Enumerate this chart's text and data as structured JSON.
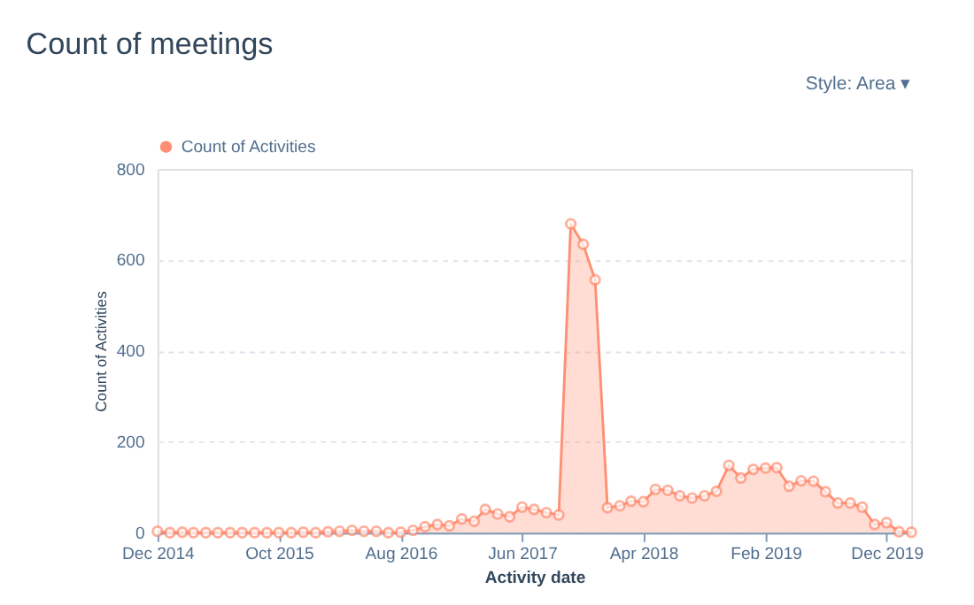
{
  "chart_data": {
    "type": "area",
    "title": "Count of meetings",
    "xlabel": "Activity date",
    "ylabel": "Count of Activities",
    "annotations": [
      "Style: Area ▾"
    ],
    "x": [
      "2014-12",
      "2015-01",
      "2015-02",
      "2015-03",
      "2015-04",
      "2015-05",
      "2015-06",
      "2015-07",
      "2015-08",
      "2015-09",
      "2015-10",
      "2015-11",
      "2015-12",
      "2016-01",
      "2016-02",
      "2016-03",
      "2016-04",
      "2016-05",
      "2016-06",
      "2016-07",
      "2016-08",
      "2016-09",
      "2016-10",
      "2016-11",
      "2016-12",
      "2017-01",
      "2017-02",
      "2017-03",
      "2017-04",
      "2017-05",
      "2017-06",
      "2017-07",
      "2017-08",
      "2017-09",
      "2017-10",
      "2017-11",
      "2017-12",
      "2018-01",
      "2018-02",
      "2018-03",
      "2018-04",
      "2018-05",
      "2018-06",
      "2018-07",
      "2018-08",
      "2018-09",
      "2018-10",
      "2018-11",
      "2018-12",
      "2019-01",
      "2019-02",
      "2019-03",
      "2019-04",
      "2019-05",
      "2019-06",
      "2019-07",
      "2019-08",
      "2019-09",
      "2019-10",
      "2019-11",
      "2019-12",
      "2020-01",
      "2020-02"
    ],
    "series": [
      {
        "name": "Count of Activities",
        "color": "#ff8f73",
        "values": [
          3,
          0,
          1,
          0,
          0,
          0,
          0,
          0,
          0,
          0,
          0,
          0,
          1,
          0,
          2,
          3,
          5,
          3,
          3,
          0,
          1,
          5,
          13,
          18,
          15,
          30,
          25,
          51,
          41,
          35,
          56,
          51,
          44,
          39,
          679,
          634,
          556,
          55,
          59,
          69,
          68,
          95,
          93,
          81,
          76,
          81,
          91,
          148,
          120,
          139,
          142,
          143,
          102,
          114,
          113,
          90,
          65,
          65,
          56,
          18,
          22,
          2,
          1
        ]
      }
    ],
    "xlim": [
      "2014-12",
      "2020-02"
    ],
    "xticks": [
      {
        "value": "2014-12",
        "label": "Dec 2014"
      },
      {
        "value": "2015-10",
        "label": "Oct 2015"
      },
      {
        "value": "2016-08",
        "label": "Aug 2016"
      },
      {
        "value": "2017-06",
        "label": "Jun 2017"
      },
      {
        "value": "2018-04",
        "label": "Apr 2018"
      },
      {
        "value": "2019-02",
        "label": "Feb 2019"
      },
      {
        "value": "2019-12",
        "label": "Dec 2019"
      }
    ],
    "ylim": [
      0,
      800
    ],
    "yticks": [
      0,
      200,
      400,
      600,
      800
    ],
    "grid": "y",
    "legend": "top left",
    "marker": "circle",
    "line_style": "solid"
  }
}
